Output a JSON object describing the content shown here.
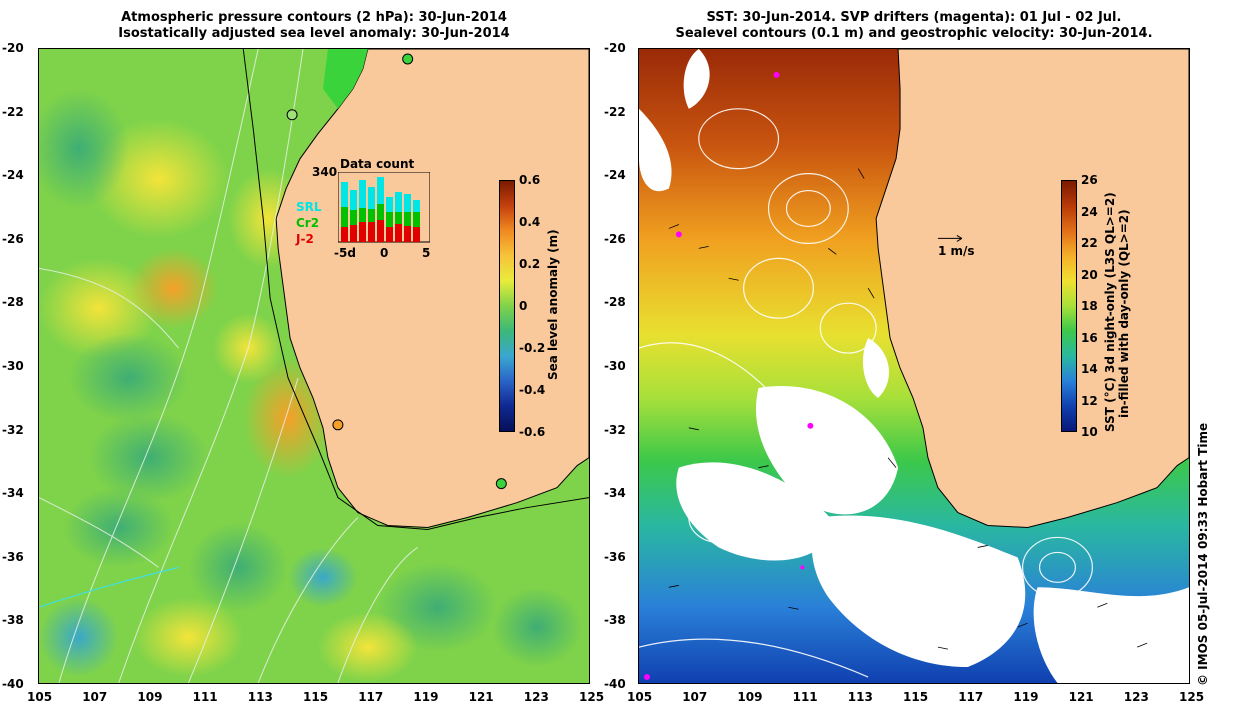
{
  "left": {
    "title_line1": "Atmospheric pressure contours (2 hPa): 30-Jun-2014",
    "title_line2": "Isostatically adjusted sea level anomaly: 30-Jun-2014",
    "colorbar_label": "Sea level anomaly (m)",
    "colorbar_ticks": [
      "0.6",
      "0.4",
      "0.2",
      "0",
      "-0.2",
      "-0.4",
      "-0.6"
    ],
    "inset": {
      "title": "Data count",
      "max_label": "340",
      "series": [
        "SRL",
        "Cr2",
        "J-2"
      ],
      "x_ticks": [
        "-5d",
        "0",
        "5"
      ],
      "colors": {
        "SRL": "#00e5e5",
        "Cr2": "#00c000",
        "J-2": "#e00000"
      }
    }
  },
  "right": {
    "title_line1": "SST: 30-Jun-2014. SVP drifters (magenta): 01 Jul - 02 Jul.",
    "title_line2": "Sealevel contours (0.1 m) and geostrophic velocity: 30-Jun-2014.",
    "colorbar_label_line1": "SST (°C) 3d night-only (L3S QL>=2)",
    "colorbar_label_line2": "in-filled with day-only (QL>=2)",
    "colorbar_ticks": [
      "26",
      "24",
      "22",
      "20",
      "18",
      "16",
      "14",
      "12",
      "10"
    ],
    "scale_label": "1 m/s"
  },
  "axes": {
    "lat_ticks": [
      "-20",
      "-22",
      "-24",
      "-26",
      "-28",
      "-30",
      "-32",
      "-34",
      "-36",
      "-38",
      "-40"
    ],
    "lon_ticks": [
      "105",
      "107",
      "109",
      "111",
      "113",
      "115",
      "117",
      "119",
      "121",
      "123",
      "125"
    ]
  },
  "watermark": "© IMOS 05-Jul-2014 09:33 Hobart Time",
  "colors": {
    "land": "#f9c89b",
    "ocean_green": "#5ad24a",
    "no_data": "#ffffff"
  }
}
